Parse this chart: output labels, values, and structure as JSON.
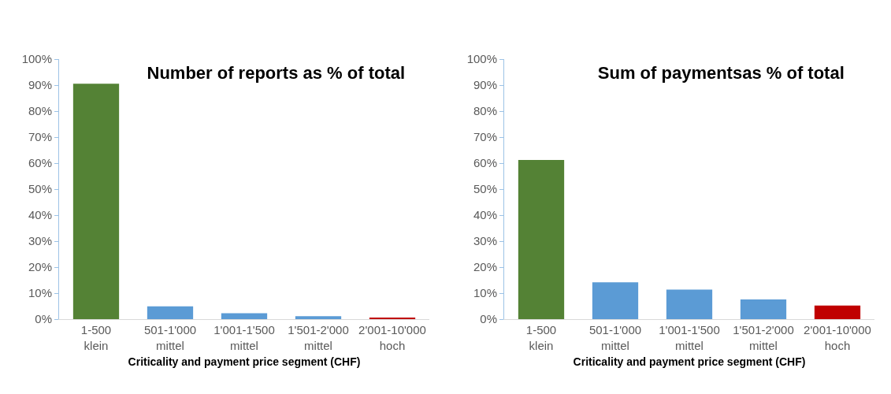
{
  "chart_data": [
    {
      "type": "bar",
      "title": "Number of reports as % of total",
      "xlabel": "Criticality and payment price segment (CHF)",
      "categories": [
        "1-500\nklein",
        "501-1'000\nmittel",
        "1'001-1'500\nmittel",
        "1'501-2'000\nmittel",
        "2'001-10'000\nhoch"
      ],
      "values": [
        90.5,
        4.9,
        2.3,
        1.1,
        0.5
      ],
      "colors": [
        "#548235",
        "#5b9bd5",
        "#5b9bd5",
        "#5b9bd5",
        "#c00000"
      ],
      "ylim": [
        0,
        100
      ],
      "yticks": [
        {
          "value": 0,
          "label": "0%"
        },
        {
          "value": 10,
          "label": "10%"
        },
        {
          "value": 20,
          "label": "20%"
        },
        {
          "value": 30,
          "label": "30%"
        },
        {
          "value": 40,
          "label": "40%"
        },
        {
          "value": 50,
          "label": "50%"
        },
        {
          "value": 60,
          "label": "60%"
        },
        {
          "value": 70,
          "label": "70%"
        },
        {
          "value": 80,
          "label": "80%"
        },
        {
          "value": 90,
          "label": "90%"
        },
        {
          "value": 100,
          "label": "100%"
        }
      ],
      "grid": false
    },
    {
      "type": "bar",
      "title": "Sum of paymentsas % of total",
      "xlabel": "Criticality and payment price segment (CHF)",
      "categories": [
        "1-500\nklein",
        "501-1'000\nmittel",
        "1'001-1'500\nmittel",
        "1'501-2'000\nmittel",
        "2'001-10'000\nhoch"
      ],
      "values": [
        61.2,
        14.2,
        11.4,
        7.6,
        5.2
      ],
      "colors": [
        "#548235",
        "#5b9bd5",
        "#5b9bd5",
        "#5b9bd5",
        "#c00000"
      ],
      "ylim": [
        0,
        100
      ],
      "yticks": [
        {
          "value": 0,
          "label": "0%"
        },
        {
          "value": 10,
          "label": "10%"
        },
        {
          "value": 20,
          "label": "20%"
        },
        {
          "value": 30,
          "label": "30%"
        },
        {
          "value": 40,
          "label": "40%"
        },
        {
          "value": 50,
          "label": "50%"
        },
        {
          "value": 60,
          "label": "60%"
        },
        {
          "value": 70,
          "label": "70%"
        },
        {
          "value": 80,
          "label": "80%"
        },
        {
          "value": 90,
          "label": "90%"
        },
        {
          "value": 100,
          "label": "100%"
        }
      ],
      "grid": false
    }
  ]
}
